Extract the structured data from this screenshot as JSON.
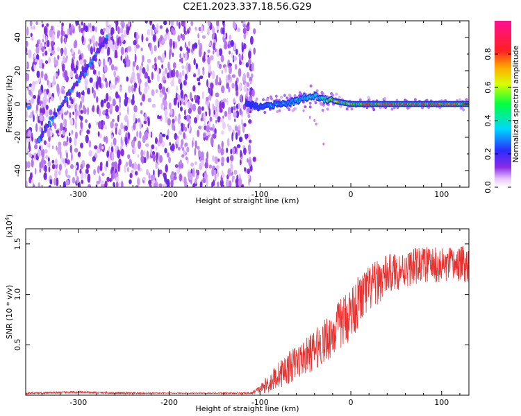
{
  "title": "C2E1.2023.337.18.56.G29",
  "chart_data": [
    {
      "type": "heatmap",
      "xlabel": "Height of straight line (km)",
      "ylabel": "Frequency (Hz)",
      "xlim": [
        -358,
        130
      ],
      "ylim": [
        -50,
        50
      ],
      "xticks": [
        -300,
        -200,
        -100,
        0,
        100
      ],
      "xtick_labels": [
        "-300",
        "-200",
        "-100",
        "0",
        "100"
      ],
      "yticks": [
        -40,
        -20,
        0,
        20,
        40
      ],
      "ytick_labels": [
        "-40",
        "-20",
        "0",
        "20",
        "40"
      ],
      "colorbar": {
        "label": "Normalized spectral amplitude",
        "range": [
          0,
          1
        ],
        "ticks": [
          0.0,
          0.2,
          0.4,
          0.6,
          0.8
        ],
        "tick_labels": [
          "0.0",
          "0.2",
          "0.4",
          "0.6",
          "0.8"
        ],
        "colormap": "rainbow (white → violet → blue → cyan → green → yellow → red → magenta)"
      },
      "features": {
        "noise_region_km": [
          -358,
          -110
        ],
        "slanted_streak": {
          "x_km": [
            -345,
            -268
          ],
          "y_hz": [
            -22,
            40
          ]
        },
        "signal_line": {
          "x_km": [
            -115,
            -100,
            -80,
            -60,
            -40,
            -20,
            0,
            40,
            80,
            130
          ],
          "y_hz": [
            1,
            -2,
            0,
            2,
            5,
            2,
            0,
            0,
            0,
            0
          ],
          "amplitude": [
            0.3,
            0.35,
            0.4,
            0.45,
            0.5,
            0.75,
            0.8,
            0.9,
            0.9,
            0.85
          ]
        }
      }
    },
    {
      "type": "line",
      "xlabel": "Height of straight line (km)",
      "ylabel": "SNR (10 * v/v)",
      "y_multiplier": "(x10^4)",
      "y_multiplier_base": "(x10",
      "y_multiplier_exp": "4",
      "y_multiplier_close": ")",
      "xlim": [
        -358,
        130
      ],
      "ylim": [
        0,
        1.65
      ],
      "xticks": [
        -300,
        -200,
        -100,
        0,
        100
      ],
      "xtick_labels": [
        "-300",
        "-200",
        "-100",
        "0",
        "100"
      ],
      "yticks": [
        0.5,
        1.0,
        1.5
      ],
      "ytick_labels": [
        "0.5",
        "1.0",
        "1.5"
      ],
      "color": "#e8312f",
      "series": [
        {
          "name": "SNR",
          "x": [
            -358,
            -300,
            -250,
            -200,
            -150,
            -110,
            -100,
            -90,
            -80,
            -70,
            -60,
            -50,
            -40,
            -30,
            -20,
            -10,
            0,
            10,
            20,
            30,
            40,
            60,
            80,
            100,
            120,
            130
          ],
          "y": [
            0.02,
            0.03,
            0.02,
            0.02,
            0.02,
            0.02,
            0.06,
            0.12,
            0.2,
            0.26,
            0.33,
            0.38,
            0.45,
            0.52,
            0.62,
            0.72,
            0.82,
            0.95,
            1.05,
            1.12,
            1.2,
            1.25,
            1.3,
            1.28,
            1.3,
            1.3
          ],
          "noise_amplitude": [
            0.01,
            0.01,
            0.01,
            0.005,
            0.005,
            0.01,
            0.04,
            0.1,
            0.13,
            0.16,
            0.17,
            0.18,
            0.2,
            0.22,
            0.24,
            0.26,
            0.28,
            0.26,
            0.24,
            0.22,
            0.2,
            0.18,
            0.18,
            0.18,
            0.18,
            0.18
          ]
        }
      ]
    }
  ],
  "colors": {
    "line": "#e8312f",
    "axes": "#000000",
    "background": "#ffffff"
  }
}
